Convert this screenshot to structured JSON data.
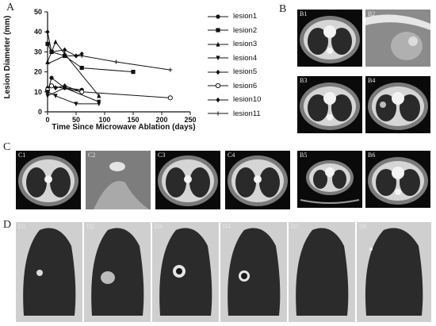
{
  "panels": {
    "A": "A",
    "B": "B",
    "C": "C",
    "D": "D"
  },
  "images": {
    "B": [
      "B1",
      "B2",
      "B3",
      "B4",
      "B5",
      "B6"
    ],
    "C": [
      "C1",
      "C2",
      "C3",
      "C4"
    ],
    "D": [
      "D1",
      "D2",
      "D3",
      "D4",
      "D5",
      "D6"
    ]
  },
  "chart_data": {
    "type": "line",
    "title": "",
    "xlabel": "Time Since Microwave Ablation (days)",
    "ylabel": "Lesion Diameter (mm)",
    "xlim": [
      0,
      250
    ],
    "ylim": [
      0,
      50
    ],
    "xticks": [
      "0",
      "50",
      "100",
      "150",
      "200",
      "250"
    ],
    "yticks": [
      "0",
      "10",
      "20",
      "30",
      "40",
      "50"
    ],
    "grid": false,
    "legend_position": "right",
    "series": [
      {
        "name": "lesion1",
        "marker": "circle-filled",
        "x": [
          0,
          7,
          30,
          60
        ],
        "y": [
          10,
          17,
          12,
          11
        ]
      },
      {
        "name": "lesion2",
        "marker": "square-filled",
        "x": [
          0,
          7,
          30,
          60,
          150
        ],
        "y": [
          34,
          30,
          28,
          22,
          20
        ]
      },
      {
        "name": "lesion3",
        "marker": "triangle-up",
        "x": [
          0,
          14,
          30,
          90
        ],
        "y": [
          25,
          35,
          29,
          8
        ]
      },
      {
        "name": "lesion4",
        "marker": "triangle-down",
        "x": [
          0,
          30,
          90
        ],
        "y": [
          8,
          12,
          5
        ]
      },
      {
        "name": "lesion5",
        "marker": "diamond-filled",
        "x": [
          0,
          7,
          14,
          30,
          60
        ],
        "y": [
          12,
          13,
          12,
          13,
          10
        ]
      },
      {
        "name": "lesion6",
        "marker": "circle-open",
        "x": [
          0,
          7,
          60,
          215
        ],
        "y": [
          11,
          13,
          10,
          7
        ]
      },
      {
        "name": "lesion10",
        "marker": "diamond-filled",
        "x": [
          0,
          7,
          30,
          50,
          60
        ],
        "y": [
          40,
          30,
          31,
          28,
          29
        ]
      },
      {
        "name": "lesion11",
        "marker": "plus",
        "x": [
          0,
          30,
          60,
          120,
          215
        ],
        "y": [
          24,
          28,
          28,
          25,
          21
        ]
      },
      {
        "name": "",
        "marker": "triangle-down",
        "x": [
          0,
          14,
          50,
          90
        ],
        "y": [
          10,
          8,
          4,
          4
        ]
      }
    ]
  }
}
